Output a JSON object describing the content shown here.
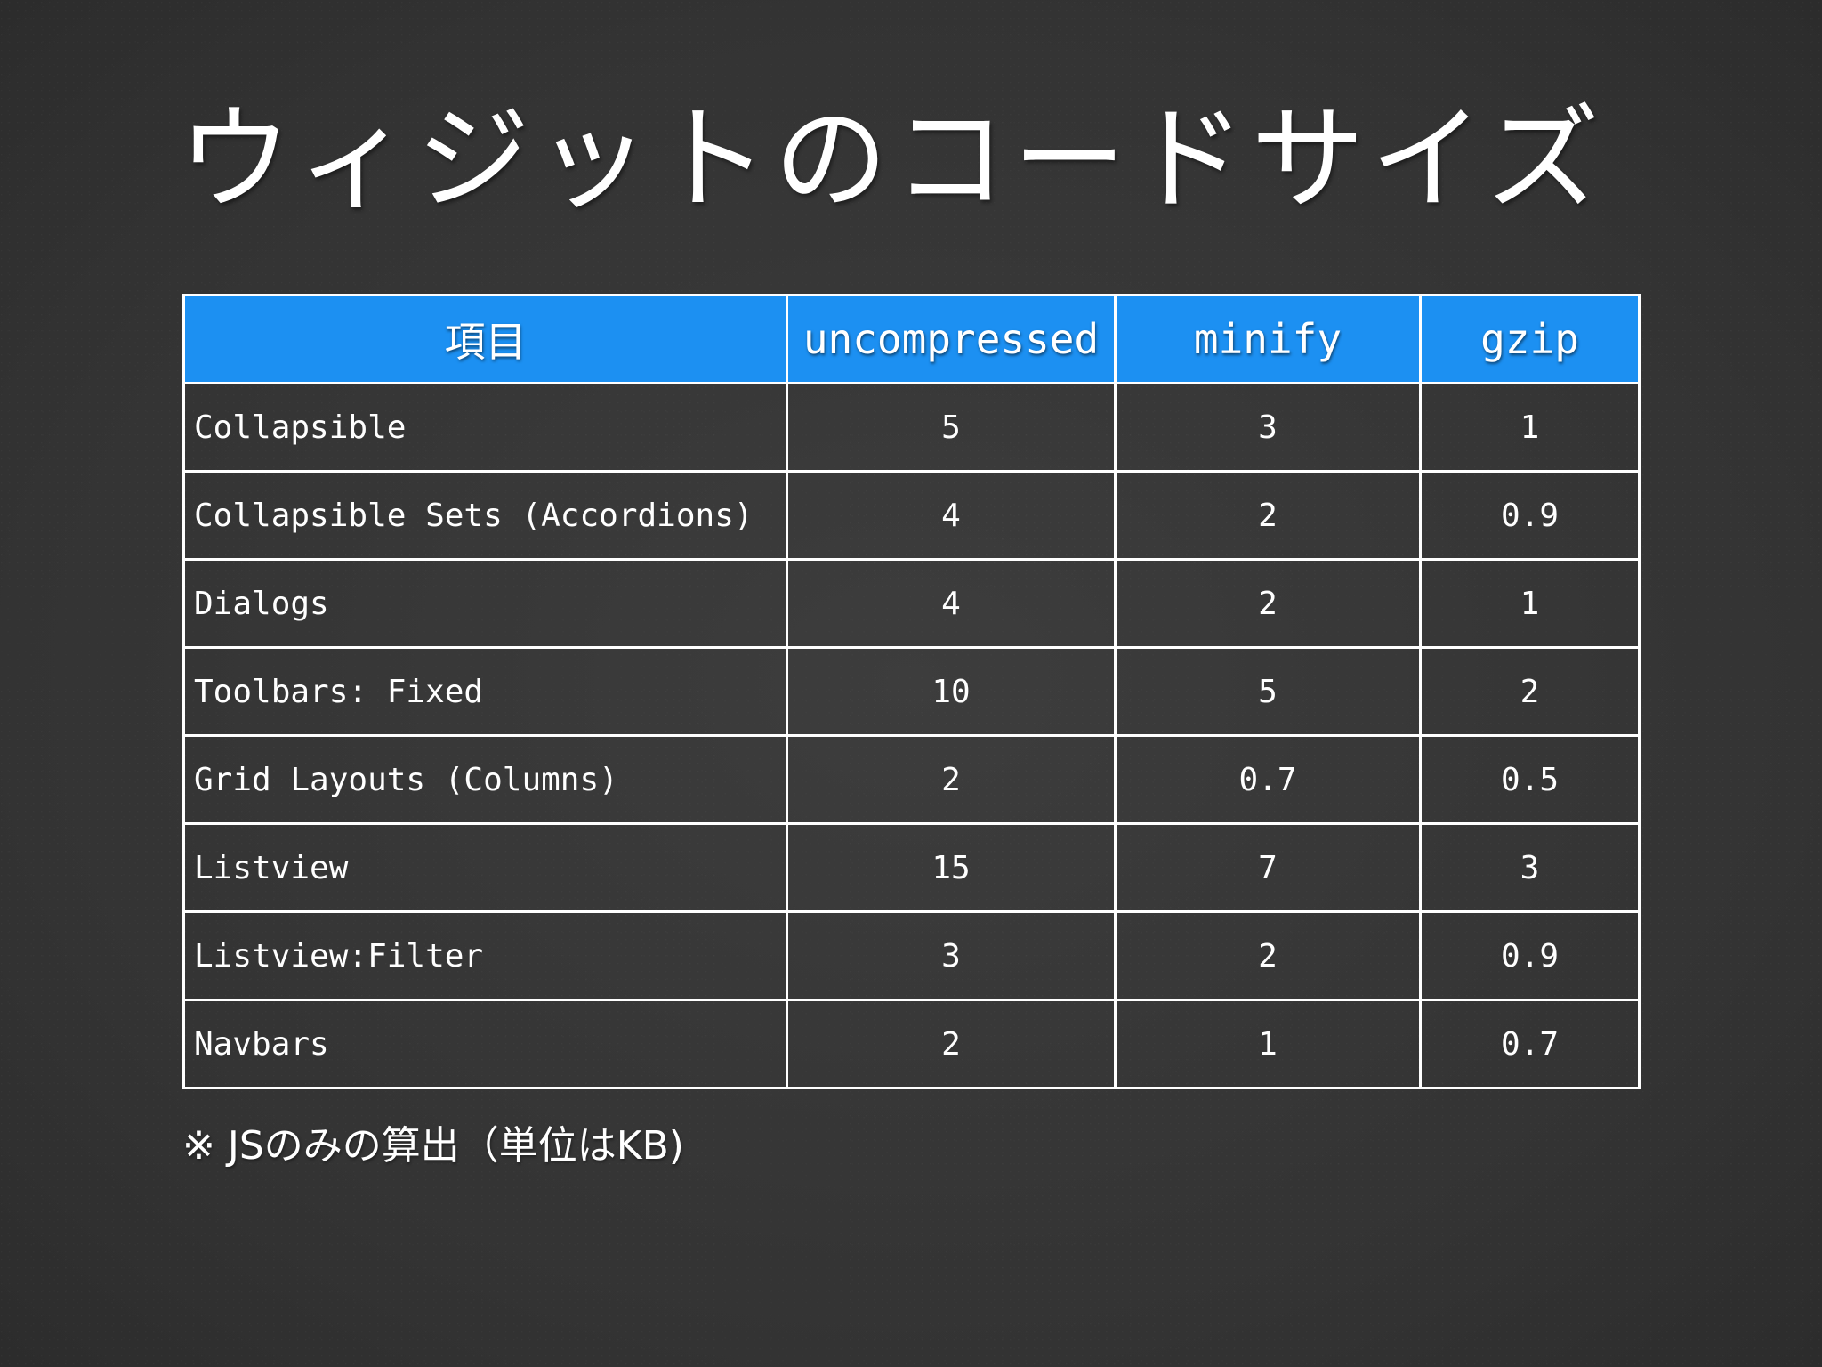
{
  "slide": {
    "title": "ウィジットのコードサイズ",
    "note": "※ JSのみの算出（単位はKB)"
  },
  "table": {
    "headers": [
      "項目",
      "uncompressed",
      "minify",
      "gzip"
    ],
    "rows": [
      [
        "Collapsible",
        "5",
        "3",
        "1"
      ],
      [
        "Collapsible Sets (Accordions)",
        "4",
        "2",
        "0.9"
      ],
      [
        "Dialogs",
        "4",
        "2",
        "1"
      ],
      [
        "Toolbars: Fixed",
        "10",
        "5",
        "2"
      ],
      [
        "Grid Layouts (Columns)",
        "2",
        "0.7",
        "0.5"
      ],
      [
        "Listview",
        "15",
        "7",
        "3"
      ],
      [
        "Listview:Filter",
        "3",
        "2",
        "0.9"
      ],
      [
        "Navbars",
        "2",
        "1",
        "0.7"
      ]
    ]
  },
  "colors": {
    "header_background": "#1c90f2",
    "background": "#3a3a3a",
    "grid_lines": "#ffffff",
    "text": "#ffffff"
  }
}
